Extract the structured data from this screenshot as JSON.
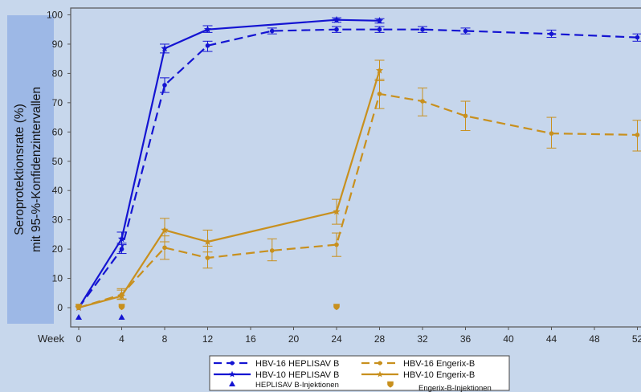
{
  "chart_data": {
    "type": "line",
    "ylabel_line1": "Seroprotektionsrate (%)",
    "ylabel_line2": "mit 95-%-Konfidenzintervallen",
    "xlabel": "Week",
    "xticks": [
      0,
      4,
      8,
      12,
      16,
      20,
      24,
      28,
      32,
      36,
      40,
      44,
      48,
      52
    ],
    "yticks": [
      0,
      10,
      20,
      30,
      40,
      50,
      60,
      70,
      80,
      90,
      100
    ],
    "xlim": [
      -1,
      52.5
    ],
    "ylim": [
      -5,
      102
    ],
    "colors": {
      "heplisav": "#1414d2",
      "engerix": "#c8901e"
    },
    "series": [
      {
        "name": "HBV-16 HEPLISAV B",
        "color": "#1414d2",
        "dash": "dashed",
        "marker": "dot",
        "x": [
          0,
          4,
          8,
          12,
          18,
          24,
          28,
          32,
          36,
          44,
          52
        ],
        "y": [
          0,
          20,
          76,
          89.5,
          94.5,
          95,
          95,
          95,
          94.5,
          93.5,
          92.3
        ],
        "lo": [
          0,
          18.5,
          73.5,
          87.5,
          93.5,
          94,
          94,
          94,
          93.5,
          92.3,
          91
        ],
        "hi": [
          0,
          22,
          78.5,
          91,
          95.5,
          96,
          96,
          96,
          95.5,
          94.8,
          93.5
        ]
      },
      {
        "name": "HBV-10 HEPLISAV B",
        "color": "#1414d2",
        "dash": "solid",
        "marker": "star",
        "x": [
          0,
          4,
          8,
          12,
          24,
          28
        ],
        "y": [
          0,
          23.5,
          88.5,
          95,
          98.3,
          98
        ],
        "lo": [
          0,
          21.5,
          87,
          94,
          97.5,
          97.2
        ],
        "hi": [
          0,
          25.8,
          90,
          96.3,
          99,
          98.7
        ]
      },
      {
        "name": "HBV-16 Engerix-B",
        "color": "#c8901e",
        "dash": "dashed",
        "marker": "dot",
        "x": [
          0,
          4,
          8,
          12,
          18,
          24,
          28,
          32,
          36,
          44,
          52
        ],
        "y": [
          0,
          4.5,
          20.5,
          17,
          19.5,
          21.5,
          73,
          70.5,
          65.5,
          59.5,
          59
        ],
        "lo": [
          0,
          3,
          16.5,
          13.5,
          16,
          17.5,
          68,
          65.5,
          60.5,
          54.5,
          53.5
        ],
        "hi": [
          0,
          6,
          24.5,
          21,
          23.5,
          25.5,
          78,
          75,
          70.5,
          65,
          64
        ]
      },
      {
        "name": "HBV-10 Engerix-B",
        "color": "#c8901e",
        "dash": "solid",
        "marker": "star",
        "x": [
          0,
          4,
          8,
          12,
          24,
          28
        ],
        "y": [
          0,
          4,
          26.5,
          22.5,
          32.8,
          81
        ],
        "lo": [
          0,
          2.8,
          22.5,
          19,
          28.5,
          77.5
        ],
        "hi": [
          0,
          6.5,
          30.5,
          26.5,
          37,
          84.5
        ]
      }
    ],
    "injections": [
      {
        "name": "HEPLISAV B-Injektionen",
        "color": "#1414d2",
        "marker": "triangle",
        "x": [
          0,
          4
        ]
      },
      {
        "name": "Engerix-B-Injektionen",
        "color": "#c8901e",
        "marker": "shield",
        "x": [
          0,
          4,
          24
        ]
      }
    ]
  }
}
